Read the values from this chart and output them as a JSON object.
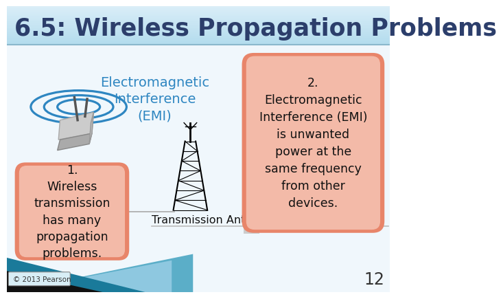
{
  "title": "6.5: Wireless Propagation Problems",
  "title_color": "#2c3e6b",
  "title_bg": "#b8d8ea",
  "slide_bg": "#ffffff",
  "content_bg": "#f0f7fc",
  "box1_text": "1.\nWireless\ntransmission\nhas many\npropagation\nproblems.",
  "box1_text_color": "#111111",
  "box2_text": "2.\nElectromagnetic\nInterference (EMI)\nis unwanted\npower at the\nsame frequency\nfrom other\ndevices.",
  "box2_text_color": "#111111",
  "box_color_outer": "#e8856a",
  "box_color_inner": "#f5b8a8",
  "emi_label": "Electromagnetic\nInterference\n(EMI)",
  "emi_label_color": "#2e86c1",
  "antenna_label": "Transmission Antenna",
  "antenna_label_color": "#111111",
  "copyright": "© 2013 Pearson",
  "page_num": "12",
  "ellipse_color": "#2e86c1",
  "footer_teal": "#1a7a9a",
  "footer_black": "#111111",
  "footer_lightblue": "#8ec8e0"
}
